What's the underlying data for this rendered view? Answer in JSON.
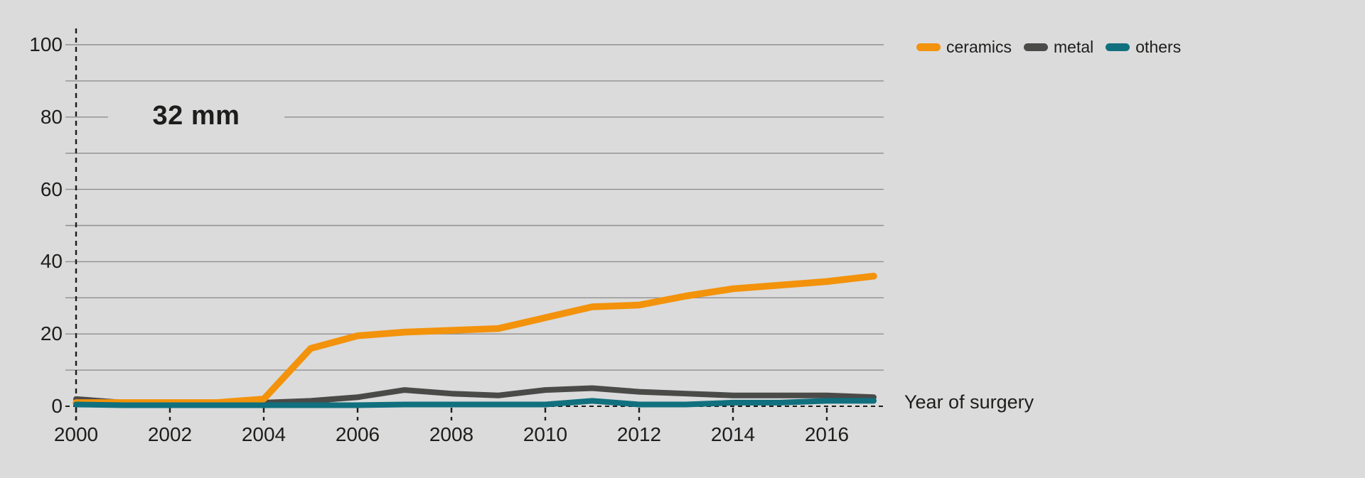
{
  "page": {
    "background": "#dbdbdb",
    "text_color": "#1d1d1b",
    "gridline_color": "#8f8f8f",
    "axis_dash_color": "#1d1d1b"
  },
  "chart_data": {
    "type": "line",
    "title": "32 mm",
    "x_axis_label": "Year of surgery",
    "x": [
      2000,
      2001,
      2002,
      2003,
      2004,
      2005,
      2006,
      2007,
      2008,
      2009,
      2010,
      2011,
      2012,
      2013,
      2014,
      2015,
      2016,
      2017
    ],
    "x_tick_labels": [
      "2000",
      "2002",
      "2004",
      "2006",
      "2008",
      "2010",
      "2012",
      "2014",
      "2016"
    ],
    "y_ticks": [
      0,
      20,
      40,
      60,
      80,
      100
    ],
    "ylim": [
      0,
      100
    ],
    "grid_interval": 10,
    "grid": true,
    "legend_position": "top-right",
    "series": [
      {
        "name": "ceramics",
        "color": "#f3920b",
        "values": [
          1,
          1,
          1,
          1,
          2,
          16,
          19.5,
          20.5,
          21,
          21.5,
          24.5,
          27.5,
          28,
          30.5,
          32.5,
          33.5,
          34.5,
          36
        ]
      },
      {
        "name": "metal",
        "color": "#4a4a49",
        "values": [
          2,
          1,
          1,
          1,
          1,
          1.5,
          2.5,
          4.5,
          3.5,
          3,
          4.5,
          5,
          4,
          3.5,
          3,
          3,
          3,
          2.5
        ]
      },
      {
        "name": "others",
        "color": "#10707e",
        "values": [
          0.5,
          0.3,
          0.3,
          0.3,
          0.3,
          0.3,
          0.3,
          0.5,
          0.5,
          0.5,
          0.5,
          1.5,
          0.5,
          0.5,
          1,
          1,
          1.5,
          1.5
        ]
      }
    ]
  }
}
